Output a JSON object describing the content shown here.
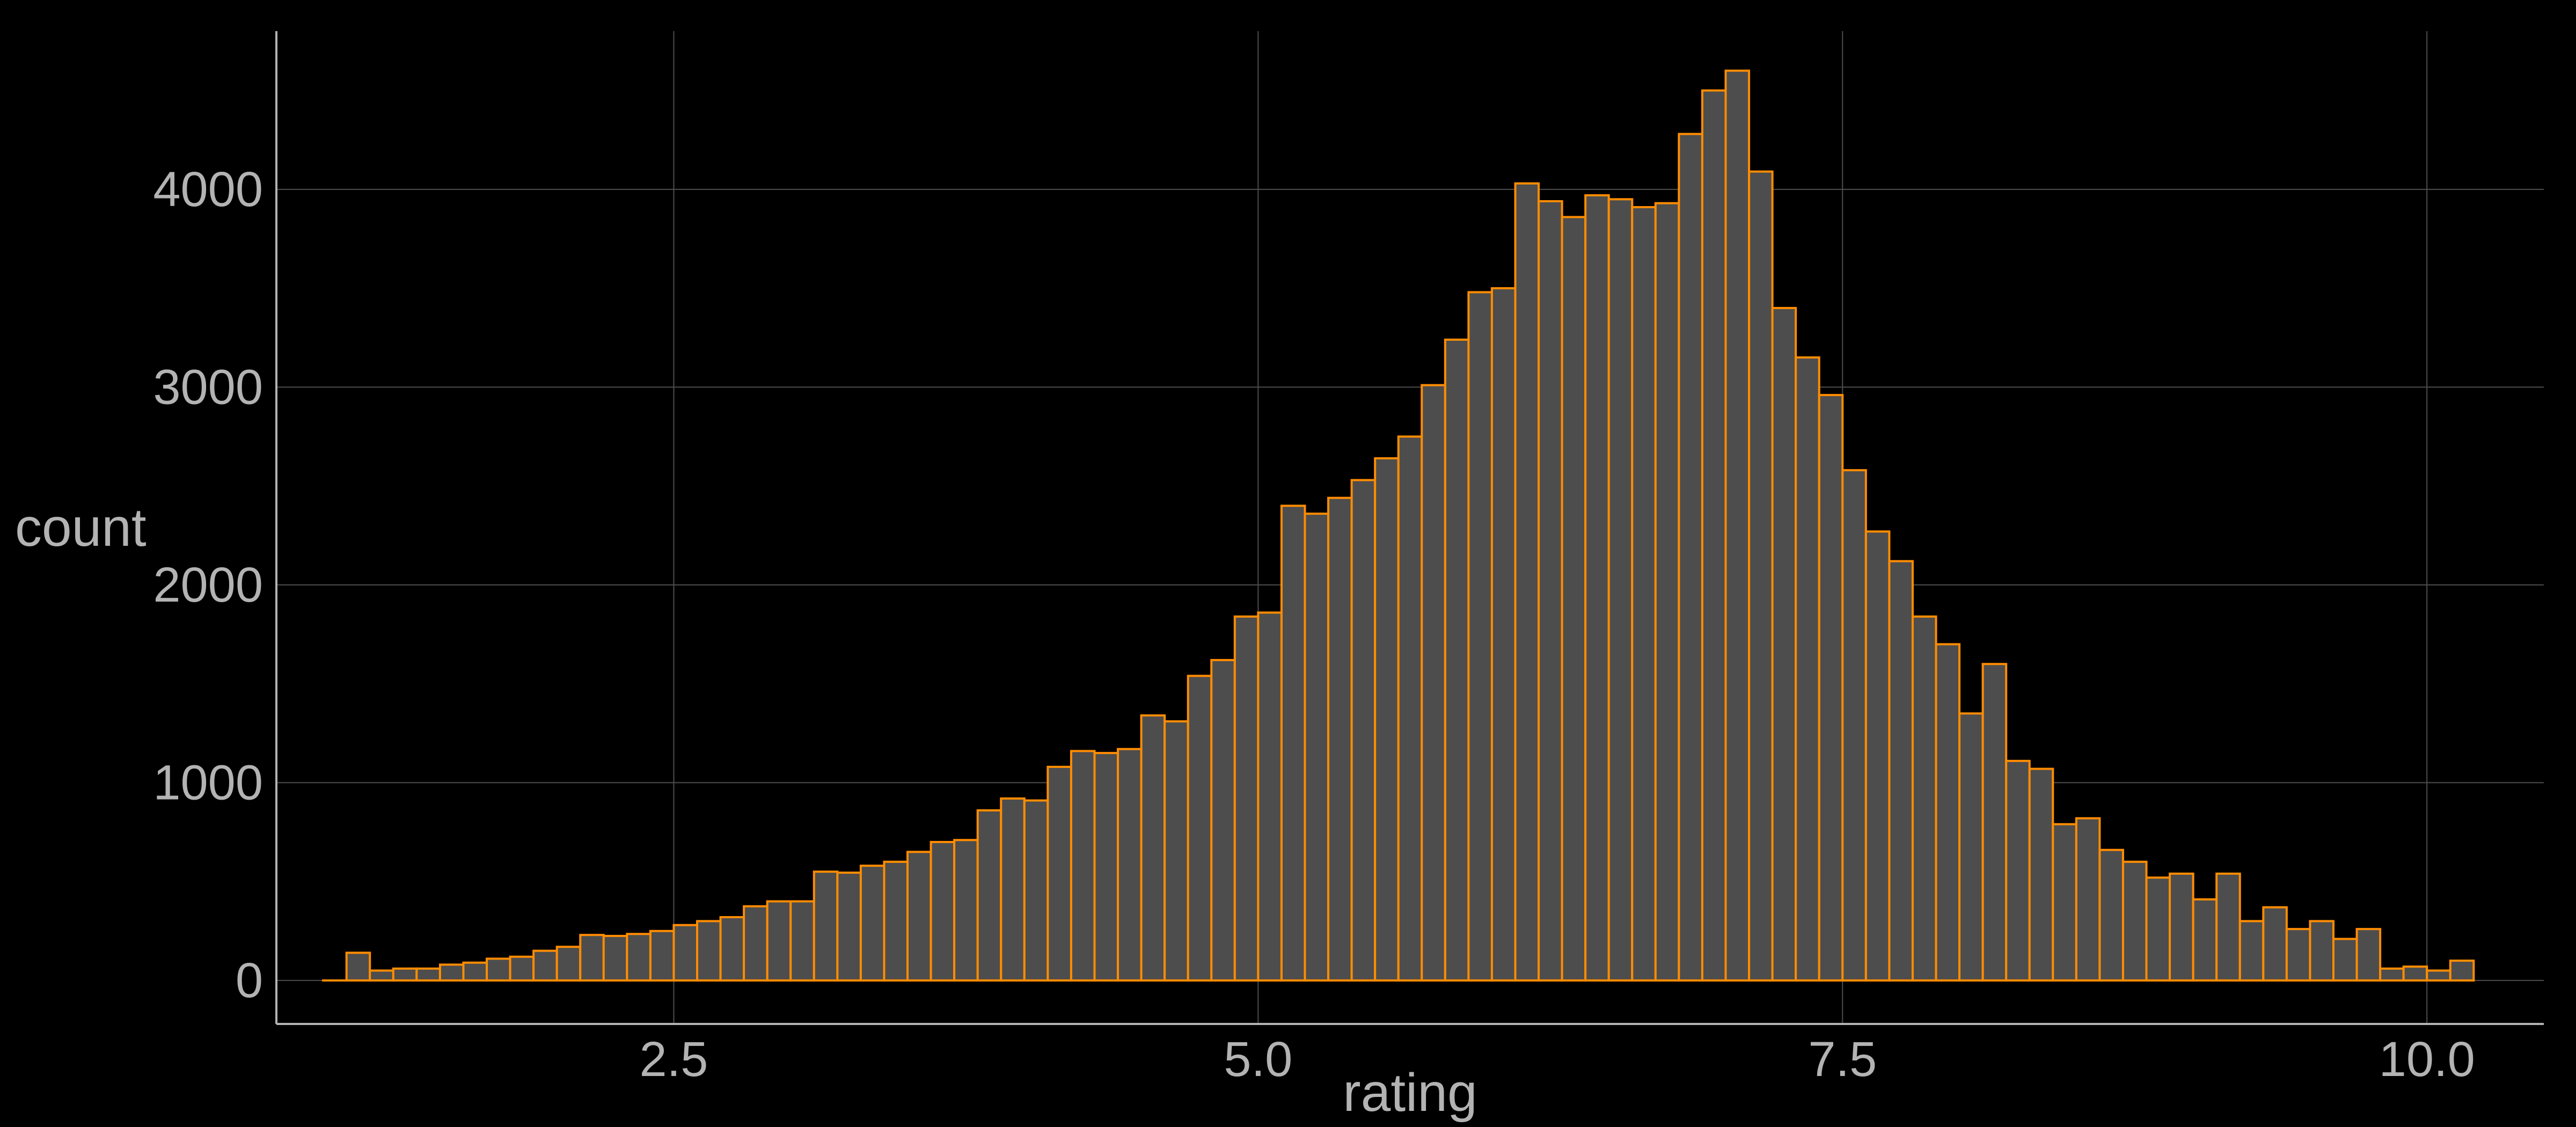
{
  "colors": {
    "background": "#000000",
    "grid": "#4d4d4d",
    "axis_line": "#b3b3b3",
    "text": "#b3b3b3",
    "bar_fill": "#4d4d4d",
    "bar_stroke": "#ff8c00"
  },
  "chart_data": {
    "type": "bar",
    "histogram": true,
    "xlabel": "rating",
    "ylabel": "count",
    "xlim": [
      0.8,
      10.5
    ],
    "ylim": [
      -220,
      4800
    ],
    "x_ticks": [
      2.5,
      5.0,
      7.5,
      10.0
    ],
    "x_tick_labels": [
      "2.5",
      "5.0",
      "7.5",
      "10.0"
    ],
    "y_ticks": [
      0,
      1000,
      2000,
      3000,
      4000
    ],
    "y_tick_labels": [
      "0",
      "1000",
      "2000",
      "3000",
      "4000"
    ],
    "grid": true,
    "bin_start": 1.0,
    "bin_width": 0.1,
    "values": [
      0,
      140,
      50,
      60,
      60,
      80,
      90,
      110,
      120,
      150,
      170,
      230,
      225,
      235,
      250,
      280,
      300,
      320,
      375,
      400,
      400,
      550,
      545,
      580,
      600,
      650,
      700,
      710,
      860,
      920,
      910,
      1080,
      1160,
      1150,
      1170,
      1340,
      1310,
      1540,
      1620,
      1840,
      1860,
      2400,
      2360,
      2440,
      2530,
      2640,
      2750,
      3010,
      3240,
      3480,
      3500,
      4030,
      3940,
      3860,
      3970,
      3950,
      3910,
      3930,
      4280,
      4500,
      4600,
      4090,
      3400,
      3150,
      2960,
      2580,
      2270,
      2120,
      1840,
      1700,
      1350,
      1600,
      1110,
      1070,
      790,
      820,
      660,
      600,
      520,
      540,
      410,
      540,
      300,
      370,
      260,
      300,
      210,
      260,
      60,
      70,
      50,
      100
    ]
  }
}
